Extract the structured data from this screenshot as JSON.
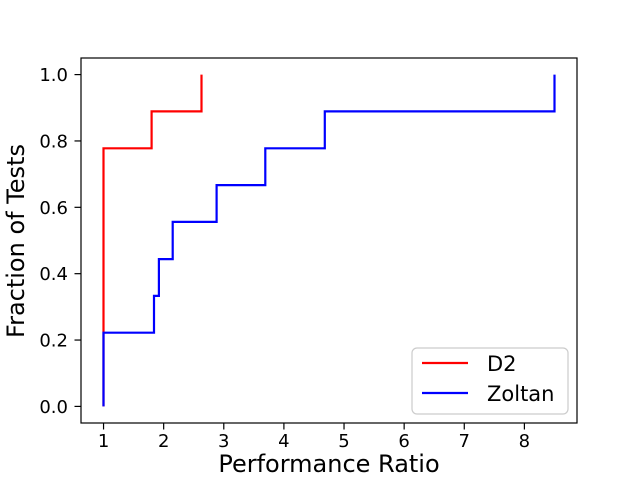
{
  "figure": {
    "background": "#ffffff",
    "title": ""
  },
  "legend": {
    "position": "lower right",
    "entries": [
      {
        "label": "D2",
        "color": "#ff0000"
      },
      {
        "label": "Zoltan",
        "color": "#0000ff"
      }
    ]
  },
  "chart_data": {
    "type": "line",
    "subtype": "step-ecdf-performance-profile",
    "title": "",
    "xlabel": "Performance Ratio",
    "ylabel": "Fraction of Tests",
    "xlim": [
      0.625,
      8.875
    ],
    "ylim": [
      -0.05,
      1.05
    ],
    "xticks": [
      1,
      2,
      3,
      4,
      5,
      6,
      7,
      8
    ],
    "xtick_labels": [
      "1",
      "2",
      "3",
      "4",
      "5",
      "6",
      "7",
      "8"
    ],
    "yticks": [
      0.0,
      0.2,
      0.4,
      0.6,
      0.8,
      1.0
    ],
    "ytick_labels": [
      "0.0",
      "0.2",
      "0.4",
      "0.6",
      "0.8",
      "1.0"
    ],
    "grid": false,
    "legend_position": "lower right",
    "series": [
      {
        "name": "D2",
        "color": "#ff0000",
        "start_y": 0.0,
        "points": [
          {
            "x": 1.0,
            "y": 0.778
          },
          {
            "x": 1.8,
            "y": 0.889
          },
          {
            "x": 2.63,
            "y": 1.0
          }
        ]
      },
      {
        "name": "Zoltan",
        "color": "#0000ff",
        "start_y": 0.0,
        "points": [
          {
            "x": 1.0,
            "y": 0.222
          },
          {
            "x": 1.84,
            "y": 0.333
          },
          {
            "x": 1.92,
            "y": 0.444
          },
          {
            "x": 2.15,
            "y": 0.556
          },
          {
            "x": 2.88,
            "y": 0.667
          },
          {
            "x": 3.69,
            "y": 0.778
          },
          {
            "x": 4.68,
            "y": 0.889
          },
          {
            "x": 8.5,
            "y": 1.0
          }
        ]
      }
    ]
  }
}
